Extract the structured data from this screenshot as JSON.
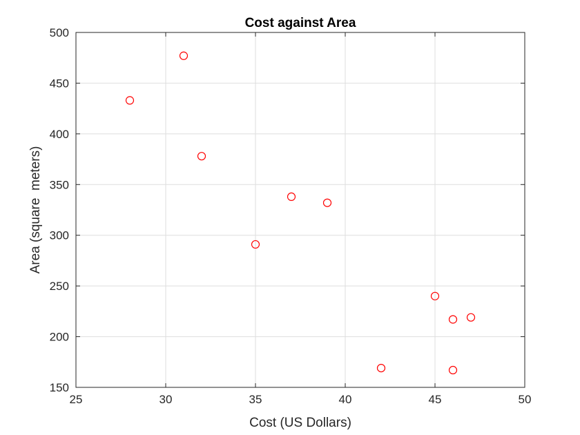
{
  "chart_data": {
    "type": "scatter",
    "title": "Cost against Area",
    "xlabel": "Cost (US Dollars)",
    "ylabel": "Area (square  meters)",
    "xlim": [
      25,
      50
    ],
    "ylim": [
      150,
      500
    ],
    "xticks": [
      25,
      30,
      35,
      40,
      45,
      50
    ],
    "yticks": [
      150,
      200,
      250,
      300,
      350,
      400,
      450,
      500
    ],
    "grid": true,
    "marker": "circle-open",
    "marker_color": "#ff0000",
    "series": [
      {
        "x": [
          28,
          31,
          32,
          35,
          37,
          39,
          42,
          45,
          46,
          46,
          47
        ],
        "y": [
          433,
          477,
          378,
          291,
          338,
          332,
          169,
          240,
          217,
          167,
          219
        ]
      }
    ]
  }
}
